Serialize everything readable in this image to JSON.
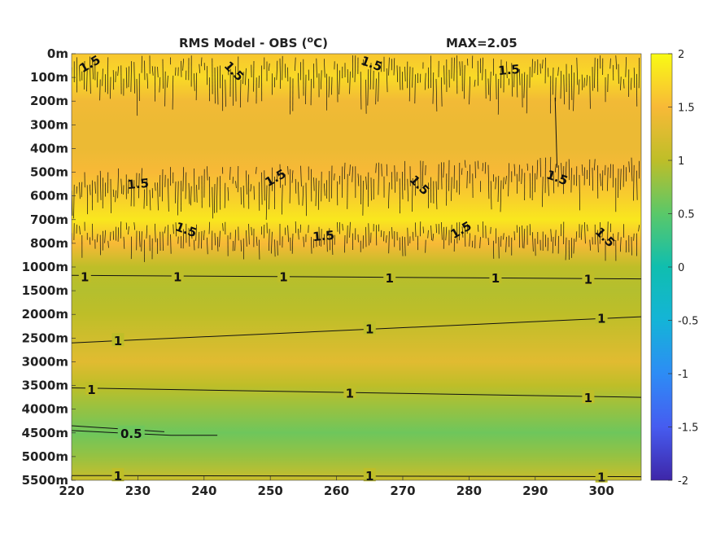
{
  "chart_data": {
    "type": "heatmap",
    "title": "RMS Model - OBS (",
    "title_superscript": "o",
    "title_unit_tail": "C)",
    "max_label": "MAX=2.05",
    "x_ticks": [
      "220",
      "230",
      "240",
      "250",
      "260",
      "270",
      "280",
      "290",
      "300"
    ],
    "x_tick_values": [
      220,
      230,
      240,
      250,
      260,
      270,
      280,
      290,
      300
    ],
    "xlim": [
      220,
      306
    ],
    "y_ticks": [
      "0m",
      "100m",
      "200m",
      "300m",
      "400m",
      "500m",
      "600m",
      "700m",
      "800m",
      "1000m",
      "1500m",
      "2000m",
      "2500m",
      "3000m",
      "3500m",
      "4000m",
      "4500m",
      "5000m",
      "5500m"
    ],
    "colorbar": {
      "ticks": [
        "2",
        "1.5",
        "1",
        "0.5",
        "0",
        "-0.5",
        "-1",
        "-1.5",
        "-2"
      ],
      "tick_values": [
        2,
        1.5,
        1,
        0.5,
        0,
        -0.5,
        -1,
        -1.5,
        -2
      ],
      "range": [
        -2,
        2
      ],
      "colormap": "parula"
    },
    "depth_profile": {
      "levels": [
        "0m",
        "100m",
        "200m",
        "300m",
        "400m",
        "500m",
        "600m",
        "700m",
        "800m",
        "1000m",
        "1500m",
        "2000m",
        "2500m",
        "3000m",
        "3500m",
        "4000m",
        "4500m",
        "5000m",
        "5500m"
      ],
      "values": [
        1.6,
        1.75,
        1.45,
        1.4,
        1.4,
        1.5,
        1.65,
        1.85,
        1.5,
        1.0,
        0.95,
        1.0,
        1.15,
        1.3,
        1.0,
        0.8,
        0.6,
        0.8,
        1.1
      ]
    },
    "contours": [
      {
        "level": "1",
        "labels": [
          "1",
          "1",
          "1",
          "1",
          "1",
          "1"
        ]
      },
      {
        "level": "1",
        "labels": [
          "1",
          "1",
          "1"
        ]
      },
      {
        "level": "1",
        "labels": [
          "1",
          "1",
          "1"
        ]
      },
      {
        "level": "0.5",
        "labels": [
          "0.5"
        ]
      },
      {
        "level": "1",
        "labels": [
          "1",
          "1",
          "1"
        ]
      }
    ],
    "noisy_contour_labels": [
      "1.5",
      "1.5",
      "1.5",
      "1.5",
      "1.5",
      "1.5",
      "1.5",
      "1.5",
      "1.5",
      "1.5",
      "1.5",
      "1.5"
    ]
  }
}
